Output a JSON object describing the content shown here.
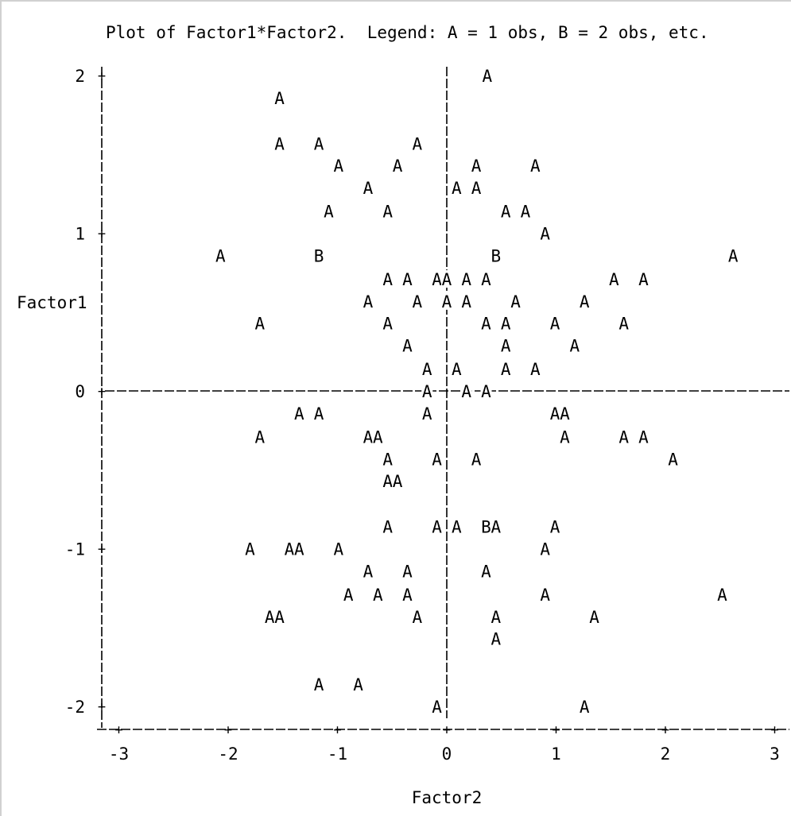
{
  "chart_data": {
    "type": "scatter",
    "title": "Plot of Factor1*Factor2.  Legend: A = 1 obs, B = 2 obs, etc.",
    "xlabel": "Factor2",
    "ylabel": "Factor1",
    "xlim": [
      -3.1,
      3.1
    ],
    "ylim": [
      -2,
      2
    ],
    "x_ticks": [
      -3,
      -2,
      -1,
      0,
      1,
      2,
      3
    ],
    "y_ticks": [
      -2,
      -1,
      0,
      1,
      2
    ],
    "x_tick_labels": [
      "-3",
      "-2",
      "-1",
      "0",
      "1",
      "2",
      "3"
    ],
    "y_tick_labels": [
      "-2",
      "-1",
      "0",
      "1",
      "2"
    ],
    "reference_lines": {
      "x": 0,
      "y": 0
    },
    "grid": false,
    "legend": {
      "A": 1,
      "B": 2
    },
    "points": [
      [
        0.37,
        2.0,
        "A"
      ],
      [
        -1.53,
        1.86,
        "A"
      ],
      [
        -1.53,
        1.57,
        "A"
      ],
      [
        -1.17,
        1.57,
        "A"
      ],
      [
        -0.27,
        1.57,
        "A"
      ],
      [
        -0.99,
        1.43,
        "A"
      ],
      [
        -0.45,
        1.43,
        "A"
      ],
      [
        0.27,
        1.43,
        "A"
      ],
      [
        0.81,
        1.43,
        "A"
      ],
      [
        -0.72,
        1.29,
        "A"
      ],
      [
        0.09,
        1.29,
        "A"
      ],
      [
        0.27,
        1.29,
        "A"
      ],
      [
        -1.08,
        1.14,
        "A"
      ],
      [
        -0.54,
        1.14,
        "A"
      ],
      [
        0.54,
        1.14,
        "A"
      ],
      [
        0.72,
        1.14,
        "A"
      ],
      [
        0.9,
        1.0,
        "A"
      ],
      [
        -2.07,
        0.86,
        "A"
      ],
      [
        -1.17,
        0.86,
        "B"
      ],
      [
        0.45,
        0.86,
        "B"
      ],
      [
        2.62,
        0.86,
        "A"
      ],
      [
        -0.54,
        0.71,
        "A"
      ],
      [
        -0.36,
        0.71,
        "A"
      ],
      [
        -0.09,
        0.71,
        "A"
      ],
      [
        0.0,
        0.71,
        "A"
      ],
      [
        0.18,
        0.71,
        "A"
      ],
      [
        0.36,
        0.71,
        "A"
      ],
      [
        1.53,
        0.71,
        "A"
      ],
      [
        1.8,
        0.71,
        "A"
      ],
      [
        -0.72,
        0.57,
        "A"
      ],
      [
        -0.27,
        0.57,
        "A"
      ],
      [
        0.0,
        0.57,
        "A"
      ],
      [
        0.18,
        0.57,
        "A"
      ],
      [
        0.63,
        0.57,
        "A"
      ],
      [
        1.26,
        0.57,
        "A"
      ],
      [
        -1.71,
        0.43,
        "A"
      ],
      [
        -0.54,
        0.43,
        "A"
      ],
      [
        0.36,
        0.43,
        "A"
      ],
      [
        0.54,
        0.43,
        "A"
      ],
      [
        0.99,
        0.43,
        "A"
      ],
      [
        1.62,
        0.43,
        "A"
      ],
      [
        -0.36,
        0.29,
        "A"
      ],
      [
        0.54,
        0.29,
        "A"
      ],
      [
        1.17,
        0.29,
        "A"
      ],
      [
        -0.18,
        0.14,
        "A"
      ],
      [
        0.09,
        0.14,
        "A"
      ],
      [
        0.54,
        0.14,
        "A"
      ],
      [
        0.81,
        0.14,
        "A"
      ],
      [
        -0.18,
        0.0,
        "A"
      ],
      [
        0.18,
        0.0,
        "A"
      ],
      [
        0.36,
        0.0,
        "A"
      ],
      [
        -1.35,
        -0.14,
        "A"
      ],
      [
        -1.17,
        -0.14,
        "A"
      ],
      [
        -0.18,
        -0.14,
        "A"
      ],
      [
        0.99,
        -0.14,
        "A"
      ],
      [
        1.08,
        -0.14,
        "A"
      ],
      [
        -1.71,
        -0.29,
        "A"
      ],
      [
        -0.72,
        -0.29,
        "A"
      ],
      [
        -0.63,
        -0.29,
        "A"
      ],
      [
        1.08,
        -0.29,
        "A"
      ],
      [
        1.62,
        -0.29,
        "A"
      ],
      [
        1.8,
        -0.29,
        "A"
      ],
      [
        -0.54,
        -0.43,
        "A"
      ],
      [
        -0.09,
        -0.43,
        "A"
      ],
      [
        0.27,
        -0.43,
        "A"
      ],
      [
        2.07,
        -0.43,
        "A"
      ],
      [
        -0.54,
        -0.57,
        "A"
      ],
      [
        -0.45,
        -0.57,
        "A"
      ],
      [
        -0.54,
        -0.86,
        "A"
      ],
      [
        -0.09,
        -0.86,
        "A"
      ],
      [
        0.09,
        -0.86,
        "A"
      ],
      [
        0.36,
        -0.86,
        "B"
      ],
      [
        0.45,
        -0.86,
        "A"
      ],
      [
        0.99,
        -0.86,
        "A"
      ],
      [
        -1.8,
        -1.0,
        "A"
      ],
      [
        -1.44,
        -1.0,
        "A"
      ],
      [
        -1.35,
        -1.0,
        "A"
      ],
      [
        -0.99,
        -1.0,
        "A"
      ],
      [
        0.9,
        -1.0,
        "A"
      ],
      [
        -0.72,
        -1.14,
        "A"
      ],
      [
        -0.36,
        -1.14,
        "A"
      ],
      [
        0.36,
        -1.14,
        "A"
      ],
      [
        -0.9,
        -1.29,
        "A"
      ],
      [
        -0.63,
        -1.29,
        "A"
      ],
      [
        -0.36,
        -1.29,
        "A"
      ],
      [
        0.9,
        -1.29,
        "A"
      ],
      [
        2.52,
        -1.29,
        "A"
      ],
      [
        -1.62,
        -1.43,
        "A"
      ],
      [
        -1.53,
        -1.43,
        "A"
      ],
      [
        -0.27,
        -1.43,
        "A"
      ],
      [
        0.45,
        -1.43,
        "A"
      ],
      [
        1.35,
        -1.43,
        "A"
      ],
      [
        0.45,
        -1.57,
        "A"
      ],
      [
        -1.17,
        -1.86,
        "A"
      ],
      [
        -0.81,
        -1.86,
        "A"
      ],
      [
        -0.09,
        -2.0,
        "A"
      ],
      [
        1.26,
        -2.0,
        "A"
      ]
    ]
  }
}
